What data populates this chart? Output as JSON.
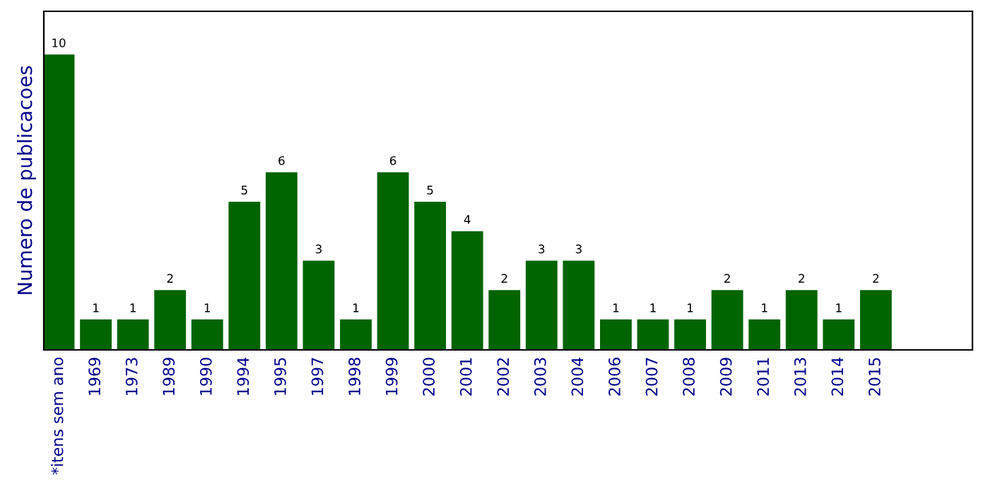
{
  "chart_data": {
    "type": "bar",
    "ylabel": "Numero de publicacoes",
    "categories": [
      "*itens sem ano",
      "1969",
      "1973",
      "1989",
      "1990",
      "1994",
      "1995",
      "1997",
      "1998",
      "1999",
      "2000",
      "2001",
      "2002",
      "2003",
      "2004",
      "2006",
      "2007",
      "2008",
      "2009",
      "2011",
      "2013",
      "2014",
      "2015"
    ],
    "values": [
      10,
      1,
      1,
      2,
      1,
      5,
      6,
      3,
      1,
      6,
      5,
      4,
      2,
      3,
      3,
      1,
      1,
      1,
      2,
      1,
      2,
      1,
      2
    ],
    "color": "#006400",
    "ylim": [
      0,
      11.5
    ],
    "data_labels": true,
    "grid": false,
    "legend": false,
    "tick_labels": "x"
  }
}
